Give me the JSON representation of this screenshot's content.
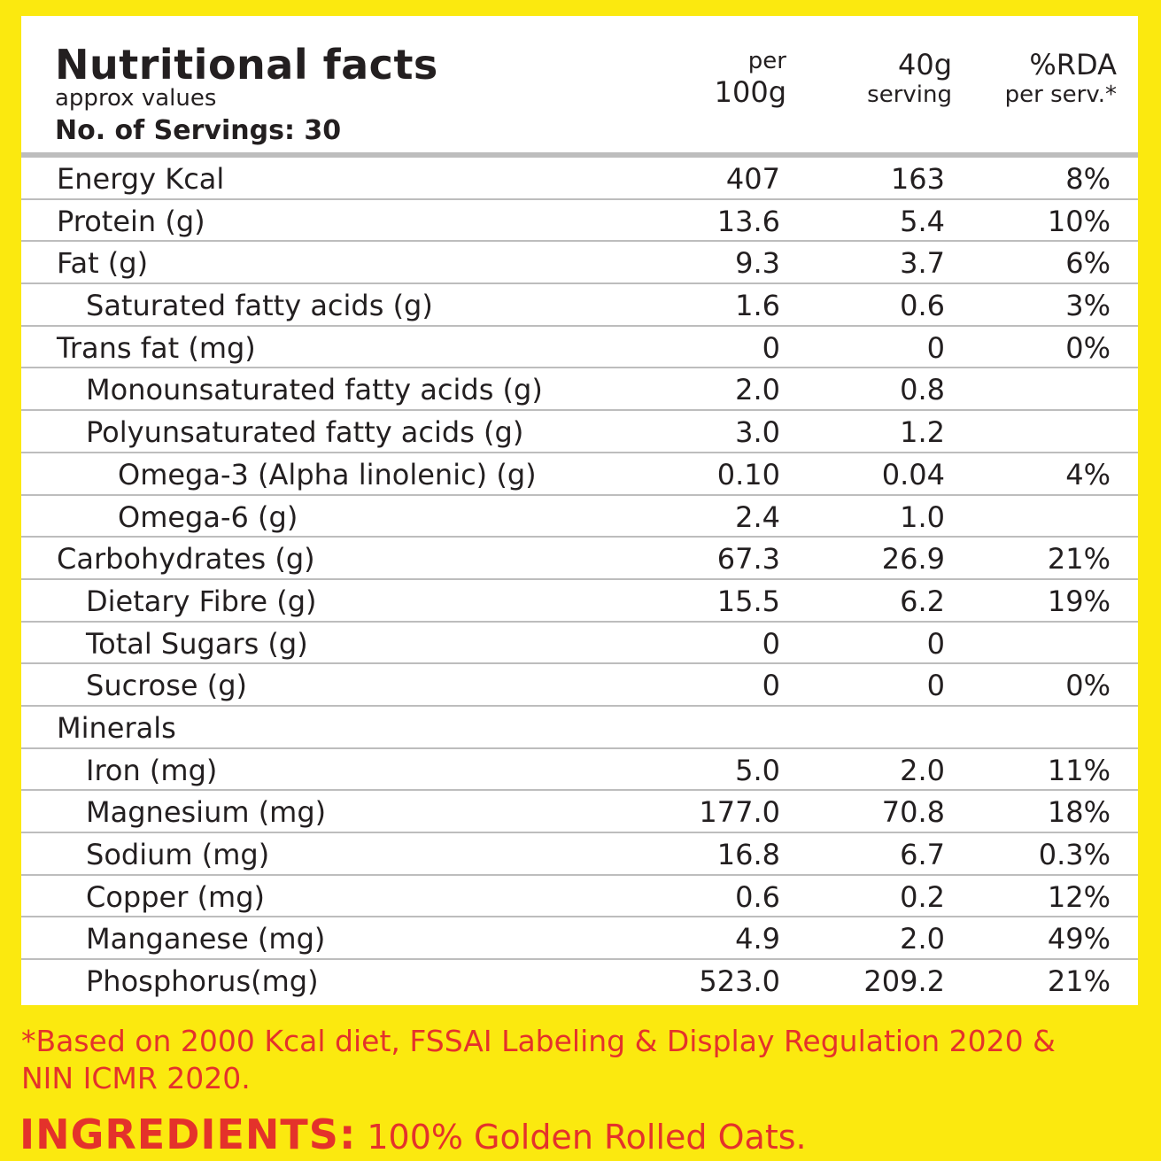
{
  "header": {
    "title": "Nutritional facts",
    "subtitle": "approx values",
    "servings": "No. of Servings: 30",
    "columns": [
      {
        "top": "per",
        "bottom": "100g"
      },
      {
        "top": "40g",
        "bottom": "serving"
      },
      {
        "top": "%RDA",
        "bottom": "per serv.*"
      }
    ]
  },
  "rows": [
    {
      "label": "Energy  Kcal",
      "per100g": "407",
      "serving": "163",
      "rda": "8%"
    },
    {
      "label": "Protein (g)",
      "per100g": "13.6",
      "serving": "5.4",
      "rda": "10%"
    },
    {
      "label": "Fat (g)",
      "per100g": "9.3",
      "serving": "3.7",
      "rda": "6%"
    },
    {
      "label": "Saturated fatty acids (g)",
      "per100g": "1.6",
      "serving": "0.6",
      "rda": "3%"
    },
    {
      "label": "Trans fat  (mg)",
      "per100g": "0",
      "serving": "0",
      "rda": "0%"
    },
    {
      "label": "Monounsaturated fatty acids (g)",
      "per100g": "2.0",
      "serving": "0.8",
      "rda": ""
    },
    {
      "label": "Polyunsaturated fatty acids (g)",
      "per100g": "3.0",
      "serving": "1.2",
      "rda": ""
    },
    {
      "label": "Omega-3 (Alpha linolenic) (g)",
      "per100g": "0.10",
      "serving": "0.04",
      "rda": "4%"
    },
    {
      "label": "Omega-6 (g)",
      "per100g": "2.4",
      "serving": "1.0",
      "rda": ""
    },
    {
      "label": "Carbohydrates (g)",
      "per100g": "67.3",
      "serving": "26.9",
      "rda": "21%"
    },
    {
      "label": "Dietary Fibre (g)",
      "per100g": "15.5",
      "serving": "6.2",
      "rda": "19%"
    },
    {
      "label": "Total Sugars (g)",
      "per100g": "0",
      "serving": "0",
      "rda": ""
    },
    {
      "label": "Sucrose (g)",
      "per100g": "0",
      "serving": "0",
      "rda": "0%"
    },
    {
      "label": "Minerals",
      "per100g": "",
      "serving": "",
      "rda": ""
    },
    {
      "label": "Iron (mg)",
      "per100g": "5.0",
      "serving": "2.0",
      "rda": "11%"
    },
    {
      "label": "Magnesium (mg)",
      "per100g": "177.0",
      "serving": "70.8",
      "rda": "18%"
    },
    {
      "label": "Sodium (mg)",
      "per100g": "16.8",
      "serving": "6.7",
      "rda": "0.3%"
    },
    {
      "label": "Copper (mg)",
      "per100g": "0.6",
      "serving": "0.2",
      "rda": "12%"
    },
    {
      "label": "Manganese (mg)",
      "per100g": "4.9",
      "serving": "2.0",
      "rda": "49%"
    },
    {
      "label": "Phosphorus(mg)",
      "per100g": "523.0",
      "serving": "209.2",
      "rda": "21%"
    }
  ],
  "footnote": "*Based on 2000 Kcal diet, FSSAI Labeling & Display Regulation 2020 & NIN ICMR 2020.",
  "ingredients": {
    "heading": "INGREDIENTS:",
    "text": "100% Golden Rolled Oats."
  },
  "colors": {
    "background": "#fbe90f",
    "accent_red": "#e4322b",
    "rule_gray": "#bdbdbd"
  }
}
